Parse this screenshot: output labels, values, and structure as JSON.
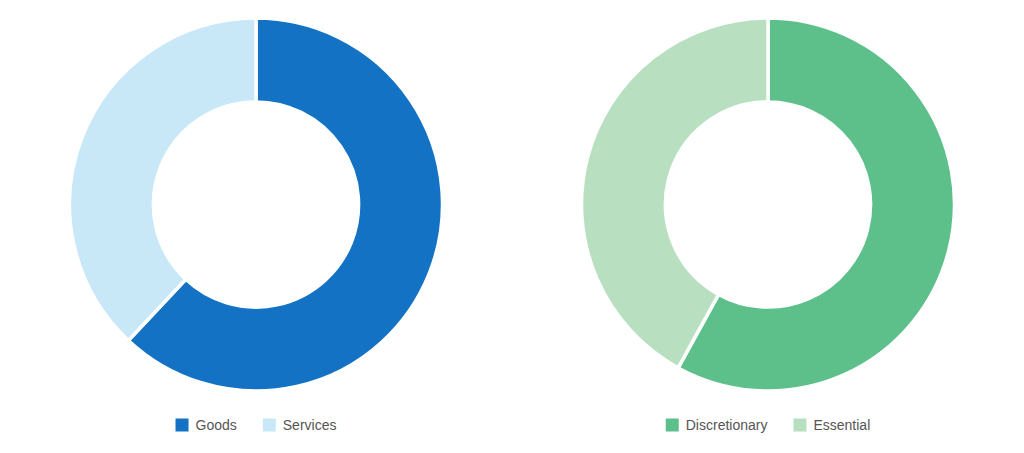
{
  "chart_data": [
    {
      "type": "donut",
      "categories": [
        "Goods",
        "Services"
      ],
      "values": [
        62,
        38
      ],
      "colors": [
        "#1472c4",
        "#c8e8f8"
      ],
      "legend": "bottom"
    },
    {
      "type": "donut",
      "categories": [
        "Discretionary",
        "Essential"
      ],
      "values": [
        58,
        42
      ],
      "colors": [
        "#5dc08a",
        "#b8e0c0"
      ],
      "legend": "bottom"
    }
  ]
}
